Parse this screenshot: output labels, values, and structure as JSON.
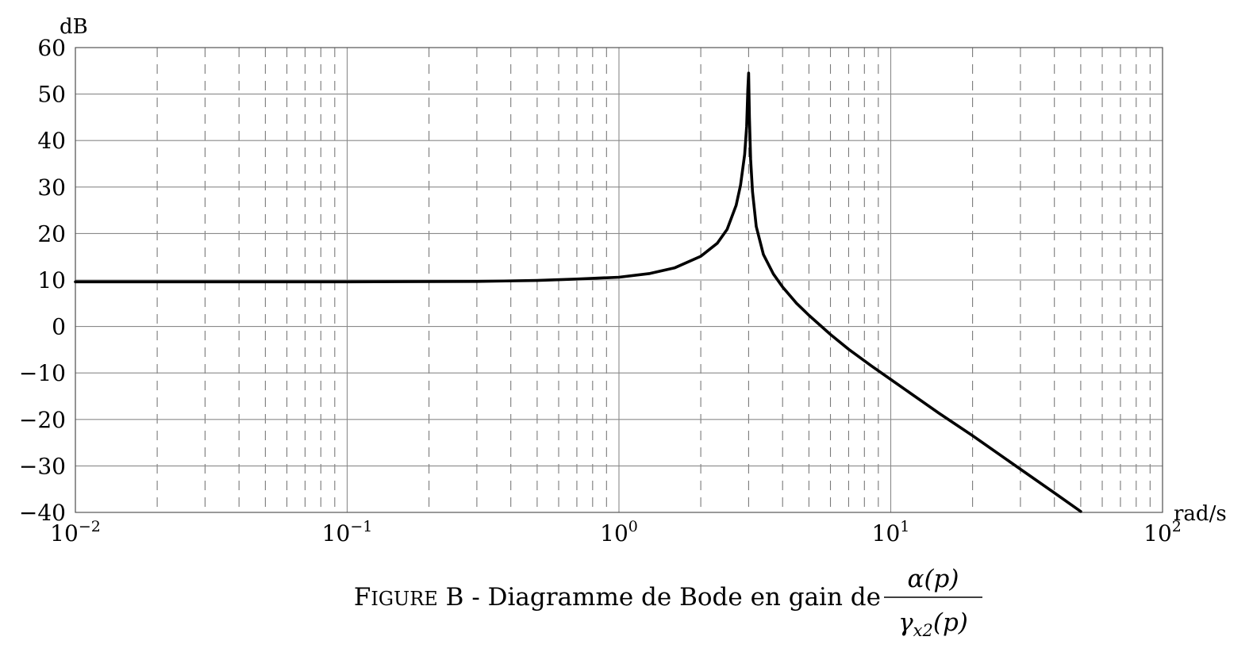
{
  "chart_data": {
    "type": "line",
    "x_scale": "log",
    "xlim": [
      0.01,
      100
    ],
    "ylim": [
      -40,
      60
    ],
    "grid": true,
    "ylabel": "dB",
    "xlabel": "rad/s",
    "xticks": [
      {
        "value": 0.01,
        "base": "10",
        "exp": "−2"
      },
      {
        "value": 0.1,
        "base": "10",
        "exp": "−1"
      },
      {
        "value": 1,
        "base": "10",
        "exp": "0"
      },
      {
        "value": 10,
        "base": "10",
        "exp": "1"
      },
      {
        "value": 100,
        "base": "10",
        "exp": "2"
      }
    ],
    "yticks": [
      {
        "value": 60,
        "label": "60"
      },
      {
        "value": 50,
        "label": "50"
      },
      {
        "value": 40,
        "label": "40"
      },
      {
        "value": 30,
        "label": "30"
      },
      {
        "value": 20,
        "label": "20"
      },
      {
        "value": 10,
        "label": "10"
      },
      {
        "value": 0,
        "label": "0"
      },
      {
        "value": -10,
        "label": "−10"
      },
      {
        "value": -20,
        "label": "−20"
      },
      {
        "value": -30,
        "label": "−30"
      },
      {
        "value": -40,
        "label": "−40"
      }
    ],
    "series": [
      {
        "x": [
          0.01,
          0.03,
          0.1,
          0.3,
          0.5,
          0.7,
          1.0,
          1.3,
          1.6,
          2.0,
          2.3,
          2.5,
          2.7,
          2.8,
          2.9,
          2.95,
          2.98,
          3.0,
          3.02,
          3.05,
          3.1,
          3.2,
          3.4,
          3.7,
          4.0,
          4.5,
          5.0,
          6.0,
          7.0,
          8.5,
          10,
          15,
          20,
          30,
          40,
          50
        ],
        "y": [
          9.6,
          9.6,
          9.6,
          9.7,
          9.9,
          10.2,
          10.6,
          11.4,
          12.6,
          15.1,
          17.9,
          20.9,
          26.1,
          30.4,
          37.0,
          43.0,
          51.0,
          54.5,
          45.0,
          36.0,
          29.0,
          21.5,
          15.5,
          11.3,
          8.5,
          5.0,
          2.4,
          -1.7,
          -4.9,
          -8.5,
          -11.4,
          -18.6,
          -23.5,
          -30.7,
          -35.8,
          -39.8
        ]
      }
    ]
  },
  "caption": {
    "figure_word": "Figure",
    "figure_id": " B",
    "text": " - Diagramme de Bode en gain de ",
    "numerator": {
      "main": "α(p)"
    },
    "denominator": {
      "main": "γ",
      "sub": "x2",
      "tail": "(p)"
    }
  }
}
